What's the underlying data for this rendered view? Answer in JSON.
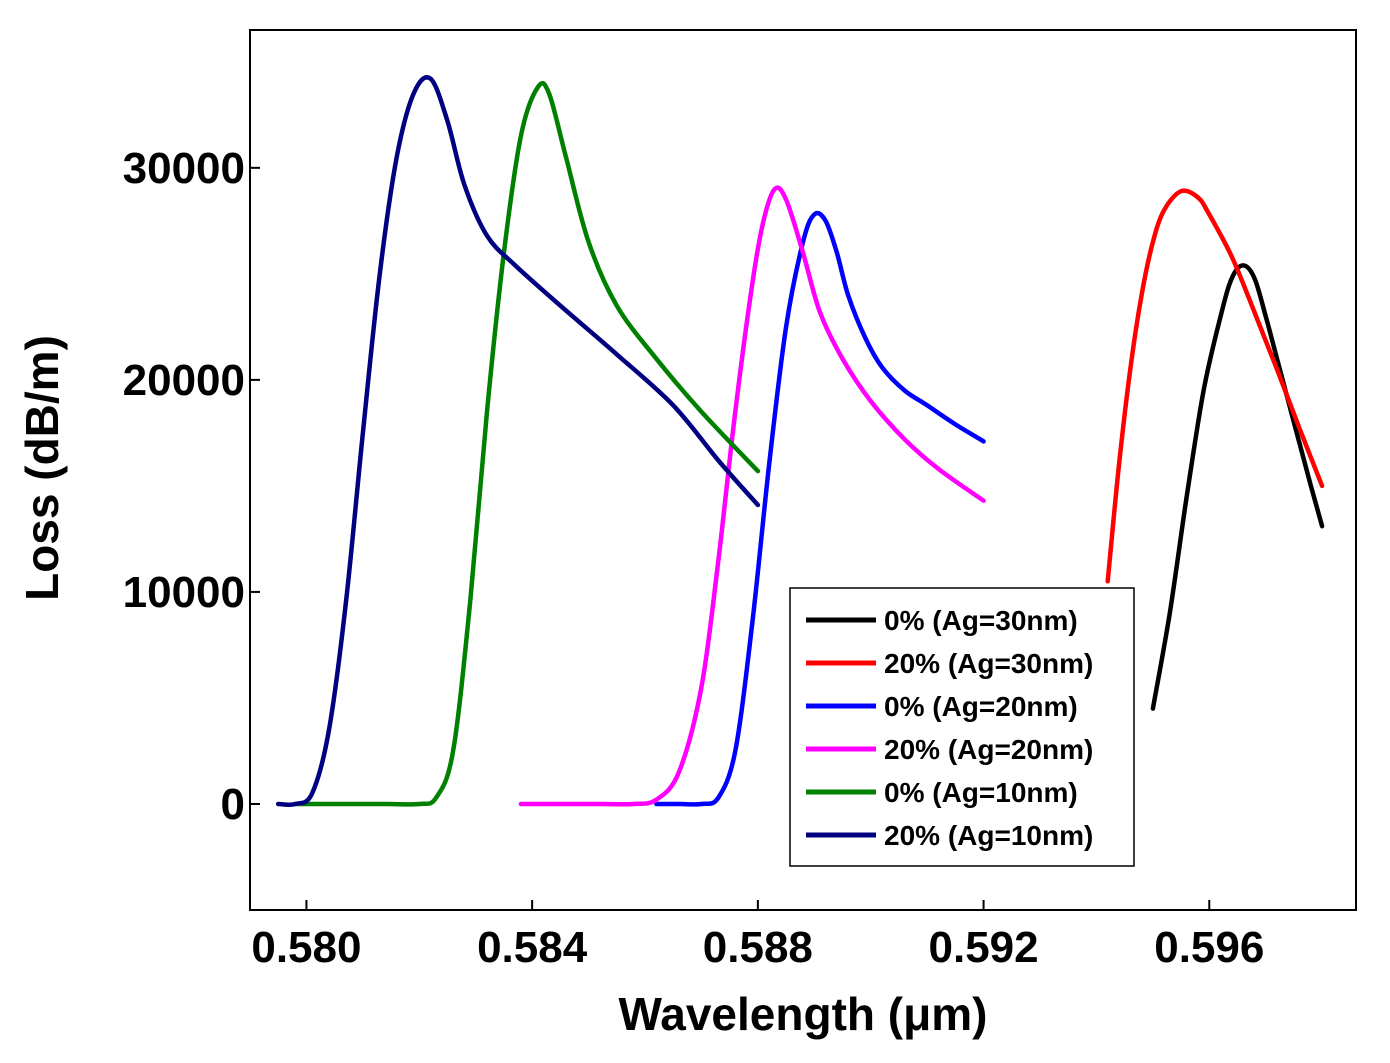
{
  "chart_data": {
    "type": "line",
    "title": "",
    "xlabel": "Wavelength (μm)",
    "ylabel": "Loss (dB/m)",
    "xlim": [
      0.579,
      0.5986
    ],
    "ylim": [
      -5000,
      36500
    ],
    "xticks": [
      0.58,
      0.584,
      0.588,
      0.592,
      0.596
    ],
    "xtick_labels": [
      "0.580",
      "0.584",
      "0.588",
      "0.592",
      "0.596"
    ],
    "yticks": [
      0,
      10000,
      20000,
      30000
    ],
    "ytick_labels": [
      "0",
      "10000",
      "20000",
      "30000"
    ],
    "grid": false,
    "legend_position": "bottom-right",
    "series": [
      {
        "name": "0% (Ag=30nm)",
        "color": "#000000",
        "x": [
          0.595,
          0.5953,
          0.5956,
          0.5959,
          0.5962,
          0.5964,
          0.5966,
          0.5968,
          0.597,
          0.5972,
          0.5975,
          0.5978,
          0.598
        ],
        "y": [
          4500,
          9000,
          14500,
          19500,
          23000,
          24800,
          25400,
          24800,
          23000,
          21000,
          18000,
          15000,
          13100
        ]
      },
      {
        "name": "20% (Ag=30nm)",
        "color": "#ff0000",
        "x": [
          0.5942,
          0.5944,
          0.5946,
          0.5948,
          0.595,
          0.5952,
          0.5955,
          0.5958,
          0.596,
          0.5964,
          0.5968,
          0.5972,
          0.5976,
          0.598
        ],
        "y": [
          10500,
          16000,
          20500,
          24000,
          26500,
          28000,
          28900,
          28600,
          27800,
          25800,
          23200,
          20500,
          17700,
          15000
        ]
      },
      {
        "name": "0% (Ag=20nm)",
        "color": "#0000ff",
        "x": [
          0.5862,
          0.5866,
          0.587,
          0.5873,
          0.5876,
          0.5879,
          0.5882,
          0.5885,
          0.5888,
          0.589,
          0.5892,
          0.5894,
          0.5896,
          0.5899,
          0.5902,
          0.5906,
          0.591,
          0.5915,
          0.592
        ],
        "y": [
          0,
          0,
          0,
          300,
          2500,
          8500,
          16000,
          22500,
          26500,
          27800,
          27500,
          26000,
          24000,
          22000,
          20600,
          19500,
          18800,
          17900,
          17100
        ]
      },
      {
        "name": "20% (Ag=20nm)",
        "color": "#ff00ff",
        "x": [
          0.5838,
          0.5845,
          0.5852,
          0.5858,
          0.5862,
          0.5866,
          0.587,
          0.5873,
          0.5876,
          0.5879,
          0.5881,
          0.5883,
          0.5885,
          0.5888,
          0.5891,
          0.5895,
          0.59,
          0.5906,
          0.5912,
          0.592
        ],
        "y": [
          0,
          0,
          0,
          0,
          200,
          1500,
          5500,
          11500,
          18500,
          24500,
          27500,
          29000,
          28500,
          26000,
          23200,
          21000,
          19000,
          17200,
          15800,
          14300
        ]
      },
      {
        "name": "0% (Ag=10nm)",
        "color": "#008000",
        "x": [
          0.5798,
          0.5806,
          0.5814,
          0.582,
          0.5823,
          0.5826,
          0.5829,
          0.5832,
          0.5835,
          0.5838,
          0.5841,
          0.5843,
          0.5846,
          0.585,
          0.5855,
          0.5862,
          0.587,
          0.588
        ],
        "y": [
          0,
          0,
          0,
          0,
          300,
          2500,
          9500,
          18500,
          26000,
          31500,
          33800,
          33500,
          30500,
          26500,
          23500,
          21000,
          18500,
          15700
        ]
      },
      {
        "name": "20% (Ag=10nm)",
        "color": "#000080",
        "x": [
          0.5795,
          0.5798,
          0.5801,
          0.5804,
          0.5807,
          0.581,
          0.5813,
          0.5816,
          0.5819,
          0.5822,
          0.5825,
          0.5828,
          0.5832,
          0.5837,
          0.5845,
          0.5855,
          0.5865,
          0.5873,
          0.588
        ],
        "y": [
          0,
          0,
          500,
          3500,
          9500,
          17500,
          25000,
          30500,
          33500,
          34200,
          32200,
          29200,
          26800,
          25400,
          23500,
          21200,
          18800,
          16200,
          14100
        ]
      }
    ]
  }
}
